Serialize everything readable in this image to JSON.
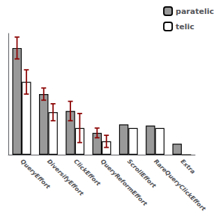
{
  "chart_data": {
    "type": "bar",
    "categories": [
      "QueryEffort",
      "DiversifyEffort",
      "ClickEffort",
      "QueryReformEffort",
      "ScrollEffort",
      "RareQueryClickEffort",
      "Extra"
    ],
    "series": [
      {
        "name": "paratelic",
        "color": "#999999",
        "values": [
          0.88,
          0.5,
          0.36,
          0.18,
          0.25,
          0.24,
          0.09
        ],
        "errors": [
          0.09,
          0.05,
          0.08,
          0.04,
          0.0,
          0.0,
          0.0
        ]
      },
      {
        "name": "telic",
        "color": "#ffffff",
        "values": [
          0.6,
          0.35,
          0.22,
          0.11,
          0.22,
          0.22,
          0.0
        ],
        "errors": [
          0.1,
          0.07,
          0.12,
          0.05,
          0.0,
          0.0,
          0.0
        ]
      }
    ],
    "ylim": [
      0,
      1.0
    ],
    "grid": false,
    "legend": "upper right",
    "tick_labels": "x"
  }
}
